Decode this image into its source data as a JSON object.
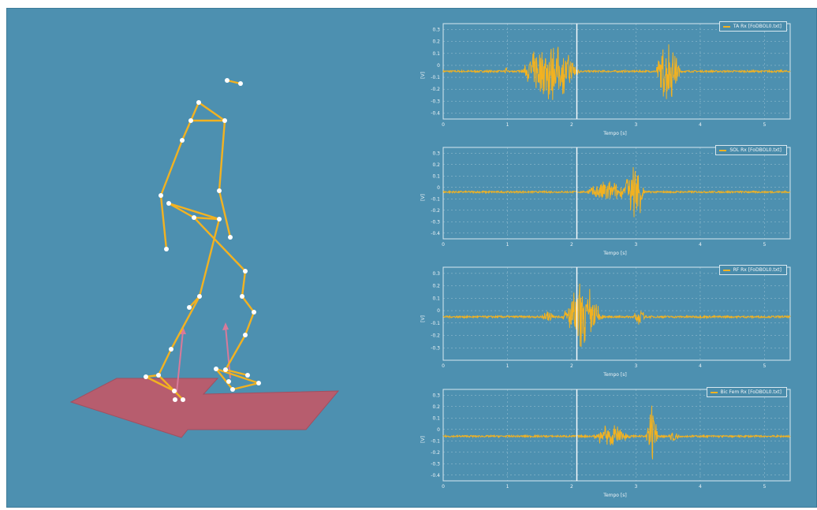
{
  "colors": {
    "background": "#4d90b0",
    "skeleton": "#f2b221",
    "joint": "#ffffff",
    "floor": "#b75d6e",
    "force_arrow": "#d87a9a",
    "signal": "#f2b221",
    "plot_frame": "#d8e8ef"
  },
  "scene": {
    "icons": [
      "skeleton-figure",
      "force-plate",
      "force-arrow"
    ]
  },
  "plots": [
    {
      "legend": "TA Rx [FoDBOL0.txt]",
      "xlabel": "Tempo [s]",
      "ylabel": "[V]",
      "yticks": [
        "0.3",
        "0.2",
        "0.1",
        "0",
        "-0.1",
        "-0.2",
        "-0.3",
        "-0.4"
      ],
      "xticks": [
        "0",
        "1",
        "2",
        "3",
        "4",
        "5"
      ],
      "cursor_x": 2.08
    },
    {
      "legend": "SOL Rx [FoDBOL0.txt]",
      "xlabel": "Tempo [s]",
      "ylabel": "[V]",
      "yticks": [
        "0.3",
        "0.2",
        "0.1",
        "0",
        "-0.1",
        "-0.2",
        "-0.3",
        "-0.4"
      ],
      "xticks": [
        "0",
        "1",
        "2",
        "3",
        "4",
        "5"
      ],
      "cursor_x": 2.08
    },
    {
      "legend": "RF Rx [FoDBOL0.txt]",
      "xlabel": "Tempo [s]",
      "ylabel": "[V]",
      "yticks": [
        "0.3",
        "0.2",
        "0.1",
        "0",
        "-0.1",
        "-0.2",
        "-0.3"
      ],
      "xticks": [
        "0",
        "1",
        "2",
        "3",
        "4",
        "5"
      ],
      "cursor_x": 2.08
    },
    {
      "legend": "Bic Fem Rx [FoDBOL0.txt]",
      "xlabel": "Tempo [s]",
      "ylabel": "[V]",
      "yticks": [
        "0.3",
        "0.2",
        "0.1",
        "0",
        "-0.1",
        "-0.2",
        "-0.3",
        "-0.4"
      ],
      "xticks": [
        "0",
        "1",
        "2",
        "3",
        "4",
        "5"
      ],
      "cursor_x": 2.08
    }
  ],
  "chart_data": [
    {
      "type": "line",
      "title": "",
      "series": [
        {
          "name": "TA Rx [FoDBOL0.txt]",
          "bursts": [
            [
              0.95,
              1.0,
              0.05
            ],
            [
              1.2,
              2.15,
              0.28
            ],
            [
              3.3,
              3.7,
              0.3
            ]
          ]
        }
      ],
      "xlim": [
        0,
        5.4
      ],
      "ylim": [
        -0.45,
        0.35
      ],
      "baseline": -0.05
    },
    {
      "type": "line",
      "title": "",
      "series": [
        {
          "name": "SOL Rx [FoDBOL0.txt]",
          "bursts": [
            [
              2.2,
              2.9,
              0.12
            ],
            [
              2.8,
              3.15,
              0.32
            ]
          ]
        }
      ],
      "xlim": [
        0,
        5.4
      ],
      "ylim": [
        -0.45,
        0.35
      ],
      "baseline": -0.04
    },
    {
      "type": "line",
      "title": "",
      "series": [
        {
          "name": "RF Rx [FoDBOL0.txt]",
          "bursts": [
            [
              1.5,
              1.75,
              0.06
            ],
            [
              1.85,
              2.5,
              0.3
            ],
            [
              2.95,
              3.15,
              0.08
            ]
          ]
        }
      ],
      "xlim": [
        0,
        5.4
      ],
      "ylim": [
        -0.4,
        0.35
      ],
      "baseline": -0.05
    },
    {
      "type": "line",
      "title": "",
      "series": [
        {
          "name": "Bic Fem Rx [FoDBOL0.txt]",
          "bursts": [
            [
              2.3,
              2.95,
              0.12
            ],
            [
              3.15,
              3.35,
              0.3
            ],
            [
              3.5,
              3.7,
              0.06
            ]
          ]
        }
      ],
      "xlim": [
        0,
        5.4
      ],
      "ylim": [
        -0.45,
        0.35
      ],
      "baseline": -0.06
    }
  ]
}
